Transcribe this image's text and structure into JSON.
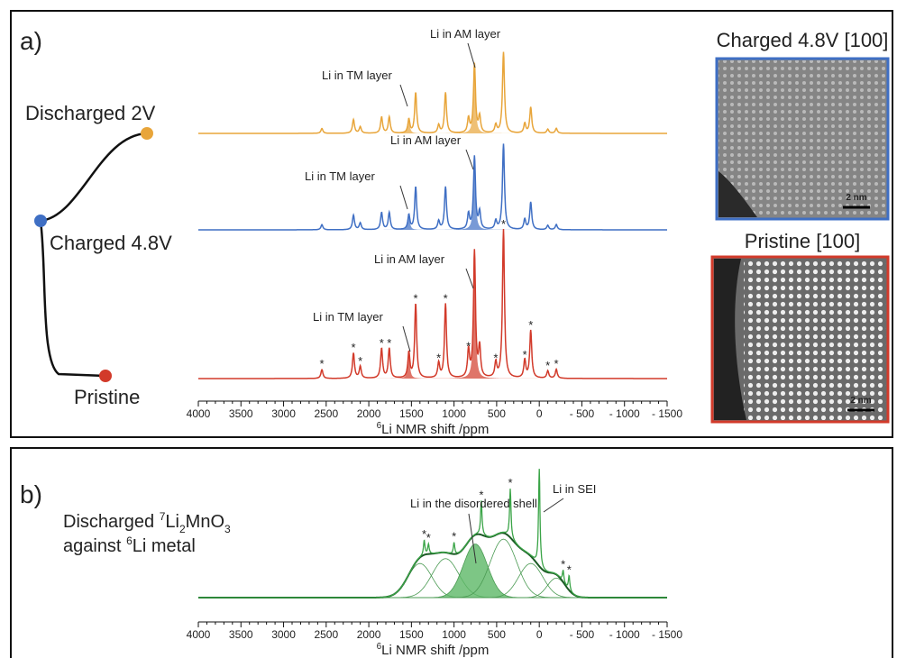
{
  "panel_a": {
    "label": "a)",
    "states": [
      "Discharged 2V",
      "Charged 4.8V",
      "Pristine"
    ],
    "annotations": {
      "am": "Li in AM layer",
      "tm": "Li in TM layer"
    },
    "images": [
      {
        "title": "Charged 4.8V [100]",
        "scale": "2 nm"
      },
      {
        "title": "Pristine [100]",
        "scale": "2 nm"
      }
    ],
    "axis": {
      "ticks": [
        "4000",
        "3500",
        "3000",
        "2500",
        "2000",
        "1500",
        "1000",
        "500",
        "0",
        "- 500",
        "- 1000",
        "- 1500"
      ],
      "title_sup": "6",
      "title": "Li NMR shift /ppm"
    }
  },
  "panel_b": {
    "label": "b)",
    "sample": {
      "line1": "Discharged ",
      "sup1": "7",
      "li": "Li",
      "sub1": "2",
      "mn": "MnO",
      "sub2": "3",
      "line2_pre": "against ",
      "line2_sup": "6",
      "line2": "Li metal"
    },
    "annotations": {
      "shell": "Li in the disordered shell",
      "sei": "Li in SEI"
    },
    "axis": {
      "ticks": [
        "4000",
        "3500",
        "3000",
        "2500",
        "2000",
        "1500",
        "1000",
        "500",
        "0",
        "- 500",
        "- 1000",
        "- 1500"
      ],
      "title_sup": "6",
      "title": "Li NMR shift /ppm"
    }
  },
  "peak_marker": "*"
}
